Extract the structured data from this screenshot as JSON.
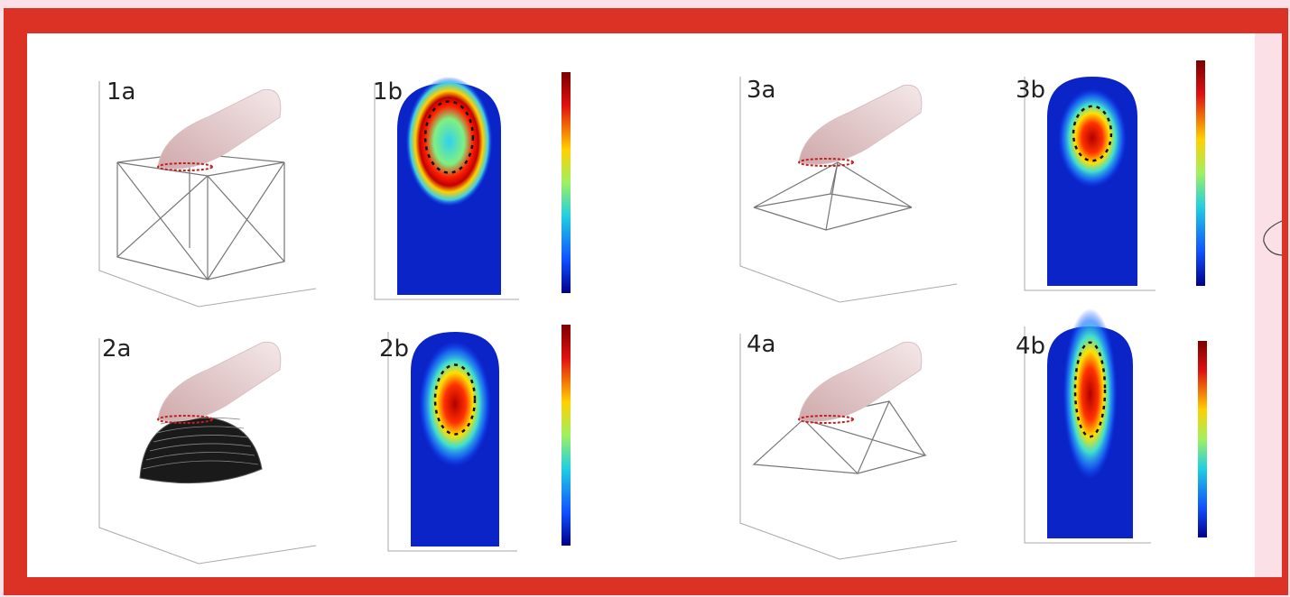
{
  "panels": [
    {
      "label": "1a"
    },
    {
      "label": "1b"
    },
    {
      "label": "2a"
    },
    {
      "label": "2b"
    },
    {
      "label": "3a"
    },
    {
      "label": "3b"
    },
    {
      "label": "4a"
    },
    {
      "label": "4b"
    }
  ]
}
